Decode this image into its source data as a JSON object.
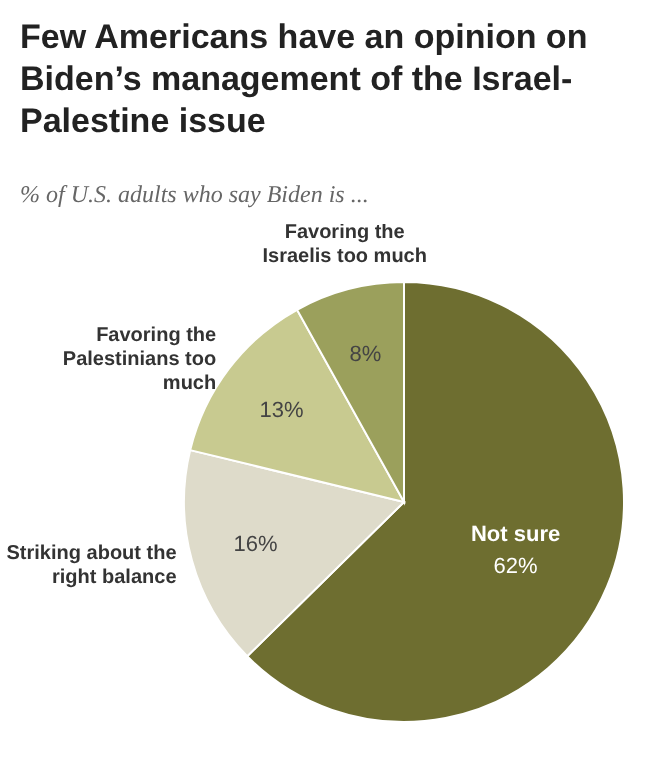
{
  "chart_data": {
    "type": "pie",
    "title": "Few Americans have an opinion on Biden’s management of the Israel-Palestine issue",
    "subtitle": "% of U.S. adults who say Biden is ...",
    "categories": [
      "Not sure",
      "Striking about the right balance",
      "Favoring the Palestinians too much",
      "Favoring the Israelis too much"
    ],
    "values": [
      62,
      16,
      13,
      8
    ],
    "colors": [
      "#6e6e30",
      "#dedbca",
      "#c8ca90",
      "#9ba05c"
    ],
    "value_labels": [
      "62%",
      "16%",
      "13%",
      "8%"
    ]
  }
}
